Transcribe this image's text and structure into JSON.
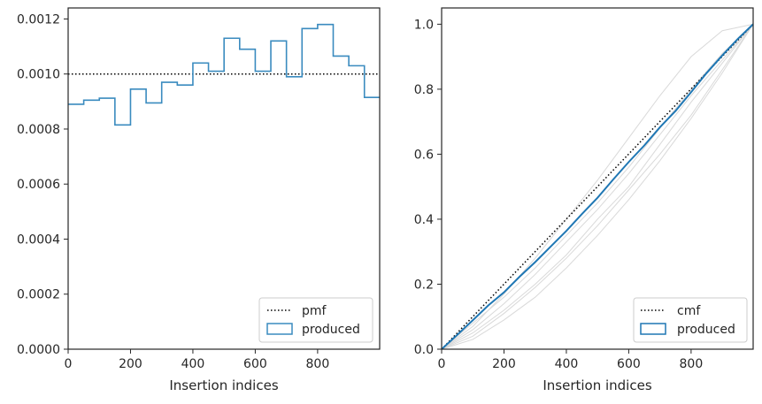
{
  "chart_data": [
    {
      "type": "histogram",
      "xlabel": "Insertion indices",
      "ylabel": "",
      "xlim": [
        0,
        999
      ],
      "ylim": [
        0,
        0.00124
      ],
      "xticks": [
        0,
        200,
        400,
        600,
        800
      ],
      "xtick_labels": [
        "0",
        "200",
        "400",
        "600",
        "800"
      ],
      "yticks": [
        0,
        0.0002,
        0.0004,
        0.0006,
        0.0008,
        0.001,
        0.0012
      ],
      "ytick_labels": [
        "0.0000",
        "0.0002",
        "0.0004",
        "0.0006",
        "0.0008",
        "0.0010",
        "0.0012"
      ],
      "legend_position": "lower-right",
      "reference": {
        "name": "pmf",
        "y": 0.001,
        "style": "dotted",
        "color": "#000000"
      },
      "series": [
        {
          "name": "produced",
          "color": "#3a8bbf",
          "bin_width": 50,
          "bin_starts": [
            0,
            50,
            100,
            150,
            200,
            250,
            300,
            350,
            400,
            450,
            500,
            550,
            600,
            650,
            700,
            750,
            800,
            850,
            900,
            950
          ],
          "values": [
            0.00089,
            0.000905,
            0.000912,
            0.000815,
            0.000945,
            0.000895,
            0.00097,
            0.00096,
            0.00104,
            0.00101,
            0.00113,
            0.00109,
            0.00101,
            0.00112,
            0.00099,
            0.001165,
            0.00118,
            0.001065,
            0.00103,
            0.000915
          ]
        }
      ]
    },
    {
      "type": "line",
      "xlabel": "Insertion indices",
      "ylabel": "",
      "xlim": [
        0,
        999
      ],
      "ylim": [
        0,
        1.05
      ],
      "xticks": [
        0,
        200,
        400,
        600,
        800
      ],
      "xtick_labels": [
        "0",
        "200",
        "400",
        "600",
        "800"
      ],
      "yticks": [
        0,
        0.2,
        0.4,
        0.6,
        0.8,
        1.0
      ],
      "ytick_labels": [
        "0.0",
        "0.2",
        "0.4",
        "0.6",
        "0.8",
        "1.0"
      ],
      "legend_position": "lower-right",
      "reference": {
        "name": "cmf",
        "x": [
          0,
          999
        ],
        "y": [
          0,
          1.0
        ],
        "style": "dotted",
        "color": "#000000"
      },
      "series": [
        {
          "name": "produced",
          "color": "#1f77b4",
          "x": [
            0,
            50,
            100,
            150,
            200,
            250,
            300,
            350,
            400,
            450,
            500,
            550,
            600,
            650,
            700,
            750,
            800,
            850,
            900,
            950,
            999
          ],
          "y": [
            0,
            0.044,
            0.089,
            0.135,
            0.175,
            0.223,
            0.268,
            0.316,
            0.364,
            0.416,
            0.466,
            0.522,
            0.576,
            0.627,
            0.683,
            0.733,
            0.791,
            0.85,
            0.904,
            0.955,
            1.0
          ]
        }
      ],
      "background_curves": {
        "color": "#d9d9d9",
        "x": [
          0,
          100,
          200,
          300,
          400,
          500,
          600,
          700,
          800,
          900,
          999
        ],
        "curves": [
          [
            0,
            0.07,
            0.17,
            0.28,
            0.4,
            0.52,
            0.65,
            0.78,
            0.9,
            0.98,
            1.0
          ],
          [
            0,
            0.06,
            0.14,
            0.23,
            0.33,
            0.43,
            0.54,
            0.66,
            0.78,
            0.89,
            1.0
          ],
          [
            0,
            0.04,
            0.11,
            0.19,
            0.28,
            0.38,
            0.49,
            0.6,
            0.72,
            0.86,
            1.0
          ],
          [
            0,
            0.05,
            0.12,
            0.2,
            0.29,
            0.4,
            0.5,
            0.63,
            0.76,
            0.88,
            1.0
          ],
          [
            0,
            0.08,
            0.16,
            0.25,
            0.35,
            0.45,
            0.56,
            0.68,
            0.8,
            0.91,
            1.0
          ],
          [
            0,
            0.03,
            0.09,
            0.16,
            0.25,
            0.35,
            0.46,
            0.58,
            0.71,
            0.85,
            1.0
          ]
        ]
      }
    }
  ]
}
